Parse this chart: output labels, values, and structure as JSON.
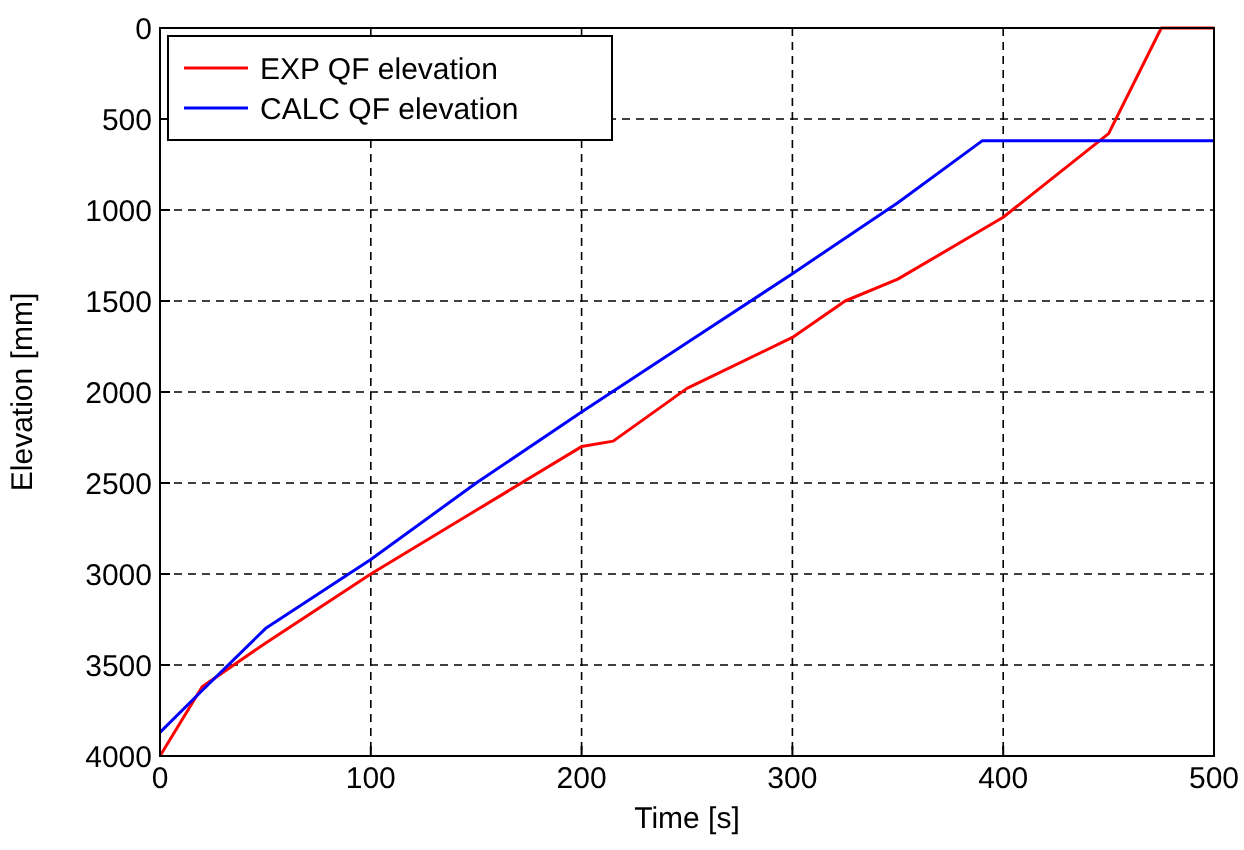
{
  "chart_data": {
    "type": "line",
    "xlabel": "Time [s]",
    "ylabel": "Elevation [mm]",
    "xlim": [
      0,
      500
    ],
    "xticks": [
      0,
      100,
      200,
      300,
      400,
      500
    ],
    "ylim": [
      4000,
      0
    ],
    "yticks": [
      0,
      500,
      1000,
      1500,
      2000,
      2500,
      3000,
      3500,
      4000
    ],
    "grid": true,
    "legend": "top left",
    "line_style": "solid",
    "series": [
      {
        "name": "EXP QF elevation",
        "color": "#ff0000",
        "x": [
          0,
          20,
          50,
          100,
          150,
          200,
          215,
          250,
          300,
          325,
          350,
          400,
          450,
          475,
          500
        ],
        "values": [
          4000,
          3620,
          3380,
          3000,
          2650,
          2300,
          2270,
          1980,
          1700,
          1500,
          1380,
          1040,
          580,
          0,
          0
        ]
      },
      {
        "name": "CALC QF elevation",
        "color": "#0000ff",
        "x": [
          0,
          20,
          50,
          100,
          150,
          200,
          250,
          300,
          350,
          390,
          500
        ],
        "values": [
          3870,
          3640,
          3300,
          2920,
          2500,
          2110,
          1730,
          1350,
          960,
          620,
          620
        ]
      }
    ]
  }
}
